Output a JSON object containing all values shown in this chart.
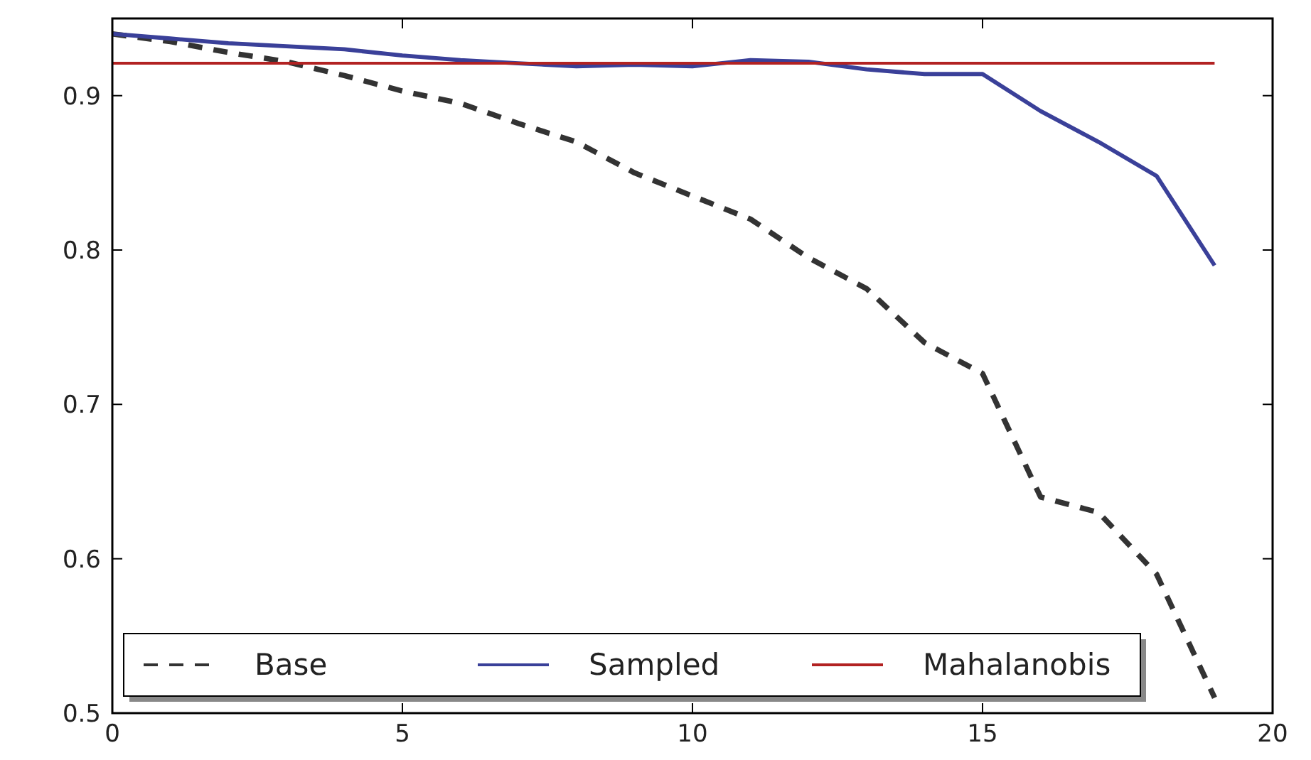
{
  "chart_data": {
    "type": "line",
    "x": [
      0,
      1,
      2,
      3,
      4,
      5,
      6,
      7,
      8,
      9,
      10,
      11,
      12,
      13,
      14,
      15,
      16,
      17,
      18,
      19
    ],
    "series": [
      {
        "name": "Base",
        "color": "#333333",
        "line_style": "dashed",
        "values": [
          0.94,
          0.935,
          0.928,
          0.922,
          0.913,
          0.903,
          0.895,
          0.882,
          0.87,
          0.85,
          0.835,
          0.82,
          0.795,
          0.775,
          0.74,
          0.72,
          0.64,
          0.63,
          0.59,
          0.51
        ]
      },
      {
        "name": "Sampled",
        "color": "#3a4099",
        "line_style": "solid",
        "values": [
          0.94,
          0.937,
          0.934,
          0.932,
          0.93,
          0.926,
          0.923,
          0.921,
          0.919,
          0.92,
          0.919,
          0.923,
          0.922,
          0.917,
          0.914,
          0.914,
          0.89,
          0.87,
          0.848,
          0.79
        ]
      },
      {
        "name": "Mahalanobis",
        "color": "#b22222",
        "line_style": "solid",
        "values": [
          0.921,
          0.921,
          0.921,
          0.921,
          0.921,
          0.921,
          0.921,
          0.921,
          0.921,
          0.921,
          0.921,
          0.921,
          0.921,
          0.921,
          0.921,
          0.921,
          0.921,
          0.921,
          0.921,
          0.921
        ]
      }
    ],
    "xlim": [
      0,
      20
    ],
    "xticks": [
      0,
      5,
      10,
      15,
      20
    ],
    "ylim": [
      0.5,
      0.95
    ],
    "yticks": [
      0.5,
      0.6,
      0.7,
      0.8,
      0.9
    ],
    "grid": false,
    "legend": "bottom left",
    "marker": "none"
  }
}
